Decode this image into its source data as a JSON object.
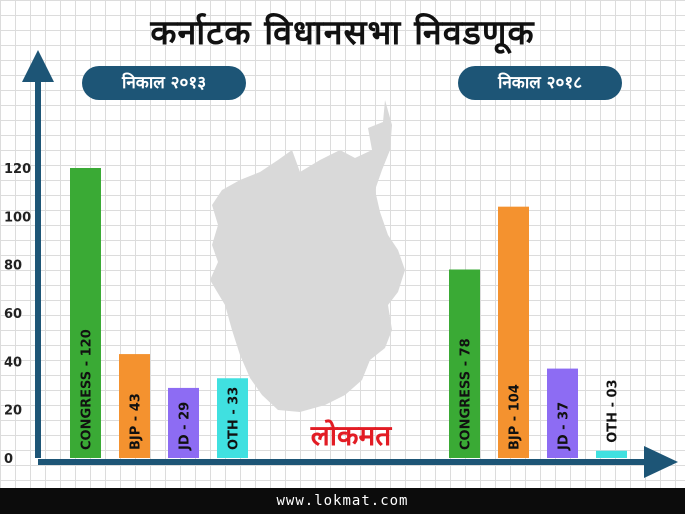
{
  "title": "कर्नाटक विधानसभा निवडणूक",
  "result_2013_label": "निकाल २०१३",
  "result_2018_label": "निकाल २०१८",
  "footer_url": "www.lokmat.com",
  "logo_text": "लोकमत",
  "colors": {
    "axis": "#1d5576",
    "congress": "#3aaa35",
    "bjp": "#f4922f",
    "jd": "#8d6cf3",
    "oth": "#40e0e0",
    "logo": "#e21c24",
    "map": "#d9d9d9"
  },
  "chart_data": {
    "type": "bar",
    "y_ticks": [
      0,
      20,
      40,
      60,
      80,
      100,
      120
    ],
    "ylim": [
      0,
      130
    ],
    "groups": [
      {
        "label": "निकाल २०१३",
        "bars": [
          {
            "label": "CONGRESS - 120",
            "value": 120,
            "party": "congress"
          },
          {
            "label": "BJP - 43",
            "value": 43,
            "party": "bjp"
          },
          {
            "label": "JD - 29",
            "value": 29,
            "party": "jd"
          },
          {
            "label": "OTH - 33",
            "value": 33,
            "party": "oth"
          }
        ]
      },
      {
        "label": "निकाल २०१८",
        "bars": [
          {
            "label": "CONGRESS - 78",
            "value": 78,
            "party": "congress"
          },
          {
            "label": "BJP - 104",
            "value": 104,
            "party": "bjp"
          },
          {
            "label": "JD - 37",
            "value": 37,
            "party": "jd"
          },
          {
            "label": "OTH - 03",
            "value": 3,
            "party": "oth"
          }
        ]
      }
    ]
  }
}
